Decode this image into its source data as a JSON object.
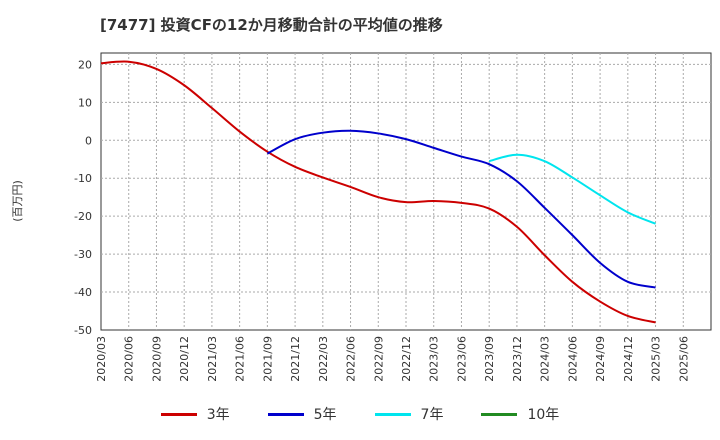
{
  "title": "[7477]  投資CFの12か月移動合計の平均値の推移",
  "chart_data": {
    "type": "line",
    "ylabel": "(百万円)",
    "xlabel": "",
    "ylim": [
      -50,
      23
    ],
    "yticks": [
      20,
      10,
      0,
      -10,
      -20,
      -30,
      -40,
      -50
    ],
    "grid": true,
    "legend_position": "bottom",
    "x_ticks": [
      "2020/03",
      "2020/06",
      "2020/09",
      "2020/12",
      "2021/03",
      "2021/06",
      "2021/09",
      "2021/12",
      "2022/03",
      "2022/06",
      "2022/09",
      "2022/12",
      "2023/03",
      "2023/06",
      "2023/09",
      "2023/12",
      "2024/03",
      "2024/06",
      "2024/09",
      "2024/12",
      "2025/03",
      "2025/06"
    ],
    "series": [
      {
        "name": "3年",
        "color": "#cc0000",
        "x": [
          "2020/03",
          "2020/06",
          "2020/09",
          "2020/12",
          "2021/03",
          "2021/06",
          "2021/09",
          "2021/12",
          "2022/03",
          "2022/06",
          "2022/09",
          "2022/12",
          "2023/03",
          "2023/06",
          "2023/09",
          "2023/12",
          "2024/03",
          "2024/06",
          "2024/09",
          "2024/12",
          "2025/03"
        ],
        "values": [
          20.3,
          20.7,
          18.8,
          14.5,
          8.5,
          2.3,
          -3.0,
          -7.0,
          -9.8,
          -12.3,
          -15.0,
          -16.3,
          -16.0,
          -16.5,
          -18.0,
          -22.8,
          -30.3,
          -37.3,
          -42.5,
          -46.3,
          -48.0
        ]
      },
      {
        "name": "5年",
        "color": "#0000cc",
        "x": [
          "2021/09",
          "2021/12",
          "2022/03",
          "2022/06",
          "2022/09",
          "2022/12",
          "2023/03",
          "2023/06",
          "2023/09",
          "2023/12",
          "2024/03",
          "2024/06",
          "2024/09",
          "2024/12",
          "2025/03"
        ],
        "values": [
          -3.5,
          0.3,
          2.0,
          2.5,
          1.8,
          0.3,
          -2.0,
          -4.3,
          -6.3,
          -10.8,
          -17.8,
          -25.0,
          -32.3,
          -37.3,
          -38.8
        ]
      },
      {
        "name": "7年",
        "color": "#00e5ee",
        "x": [
          "2023/09",
          "2023/12",
          "2024/03",
          "2024/06",
          "2024/09",
          "2024/12",
          "2025/03"
        ],
        "values": [
          -5.5,
          -3.8,
          -5.5,
          -9.8,
          -14.5,
          -19.0,
          -22.0
        ]
      },
      {
        "name": "10年",
        "color": "#228b22",
        "x": [],
        "values": []
      }
    ]
  }
}
